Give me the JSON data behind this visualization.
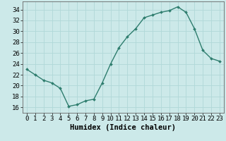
{
  "x": [
    0,
    1,
    2,
    3,
    4,
    5,
    6,
    7,
    8,
    9,
    10,
    11,
    12,
    13,
    14,
    15,
    16,
    17,
    18,
    19,
    20,
    21,
    22,
    23
  ],
  "y": [
    23,
    22,
    21,
    20.5,
    19.5,
    16.2,
    16.5,
    17.2,
    17.5,
    20.5,
    24.0,
    27.0,
    29.0,
    30.5,
    32.5,
    33.0,
    33.5,
    33.8,
    34.5,
    33.5,
    30.5,
    26.5,
    25.0,
    24.5
  ],
  "line_color": "#2e7d6e",
  "marker": "D",
  "markersize": 2.0,
  "linewidth": 1.0,
  "xlabel": "Humidex (Indice chaleur)",
  "xlim": [
    -0.5,
    23.5
  ],
  "ylim": [
    15.0,
    35.5
  ],
  "yticks": [
    16,
    18,
    20,
    22,
    24,
    26,
    28,
    30,
    32,
    34
  ],
  "xticks": [
    0,
    1,
    2,
    3,
    4,
    5,
    6,
    7,
    8,
    9,
    10,
    11,
    12,
    13,
    14,
    15,
    16,
    17,
    18,
    19,
    20,
    21,
    22,
    23
  ],
  "bg_color": "#cce9e9",
  "grid_color": "#b0d8d8",
  "tick_fontsize": 6.5,
  "xlabel_fontsize": 7.5
}
